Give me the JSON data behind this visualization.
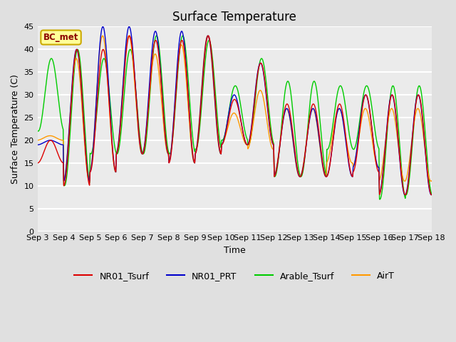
{
  "title": "Surface Temperature",
  "ylabel": "Surface Temperature (C)",
  "xlabel": "Time",
  "ylim": [
    0,
    45
  ],
  "yticks": [
    0,
    5,
    10,
    15,
    20,
    25,
    30,
    35,
    40,
    45
  ],
  "xtick_labels": [
    "Sep 3",
    "Sep 4",
    "Sep 5",
    "Sep 6",
    "Sep 7",
    "Sep 8",
    "Sep 9",
    "Sep 10",
    "Sep 11",
    "Sep 12",
    "Sep 13",
    "Sep 14",
    "Sep 15",
    "Sep 16",
    "Sep 17",
    "Sep 18"
  ],
  "colors": {
    "NR01_Tsurf": "#dd0000",
    "NR01_PRT": "#0000cc",
    "Arable_Tsurf": "#00cc00",
    "AirT": "#ff9900"
  },
  "fig_bg": "#e0e0e0",
  "ax_bg": "#ebebeb",
  "annotation_text": "BC_met",
  "annotation_fg": "#8b0000",
  "annotation_bg": "#ffff99",
  "annotation_border": "#ccaa00",
  "title_fontsize": 12,
  "axis_label_fontsize": 9,
  "tick_fontsize": 8,
  "legend_fontsize": 9,
  "line_width": 1.0,
  "day_mins_r": [
    15,
    10,
    13,
    17,
    17,
    15,
    17,
    19,
    19,
    12,
    12,
    12,
    13,
    8,
    8
  ],
  "day_maxs_r": [
    20,
    40,
    40,
    43,
    42,
    42,
    43,
    29,
    37,
    28,
    28,
    28,
    30,
    30,
    30
  ],
  "day_mins_b": [
    19,
    11,
    13,
    17,
    17,
    15,
    17,
    19,
    19,
    12,
    12,
    12,
    14,
    8,
    8
  ],
  "day_maxs_b": [
    20,
    40,
    45,
    45,
    44,
    44,
    43,
    30,
    37,
    27,
    27,
    27,
    30,
    30,
    30
  ],
  "day_mins_g": [
    22,
    10,
    17,
    17,
    17,
    17,
    18,
    20,
    19,
    12,
    12,
    18,
    18,
    7,
    8
  ],
  "day_maxs_g": [
    38,
    40,
    38,
    40,
    43,
    43,
    42,
    32,
    38,
    33,
    33,
    32,
    32,
    32,
    32
  ],
  "day_mins_o": [
    20,
    11,
    13,
    17,
    17,
    15,
    17,
    19,
    18,
    12,
    12,
    15,
    14,
    11,
    11
  ],
  "day_maxs_o": [
    21,
    38,
    43,
    43,
    39,
    41,
    43,
    26,
    31,
    27,
    27,
    27,
    27,
    27,
    27
  ],
  "hours_per_day": 48,
  "days": 15
}
